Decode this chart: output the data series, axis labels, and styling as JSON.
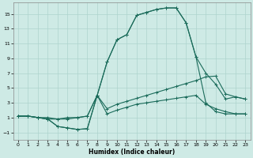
{
  "xlabel": "Humidex (Indice chaleur)",
  "background_color": "#ceeae5",
  "grid_color": "#add4ce",
  "line_color": "#1a6b5a",
  "xlim": [
    -0.5,
    23.5
  ],
  "ylim": [
    -2,
    16.5
  ],
  "xticks": [
    0,
    1,
    2,
    3,
    4,
    5,
    6,
    7,
    8,
    9,
    10,
    11,
    12,
    13,
    14,
    15,
    16,
    17,
    18,
    19,
    20,
    21,
    22,
    23
  ],
  "yticks": [
    -1,
    1,
    3,
    5,
    7,
    9,
    11,
    13,
    15
  ],
  "line1_x": [
    0,
    1,
    2,
    3,
    4,
    5,
    6,
    7,
    8,
    9,
    10,
    11,
    12,
    13,
    14,
    15,
    16,
    17,
    18,
    19,
    20,
    21,
    22,
    23
  ],
  "line1_y": [
    1.2,
    1.2,
    1.0,
    1.0,
    0.8,
    1.0,
    1.0,
    1.2,
    4.0,
    8.5,
    11.5,
    12.2,
    14.8,
    15.2,
    15.6,
    15.8,
    15.8,
    13.8,
    9.2,
    7.0,
    5.5,
    3.5,
    3.8,
    3.5
  ],
  "line2_x": [
    0,
    1,
    2,
    3,
    4,
    5,
    6,
    7,
    8,
    9,
    10,
    11,
    12,
    13,
    14,
    15,
    16,
    17,
    18,
    19,
    20,
    21,
    22,
    23
  ],
  "line2_y": [
    1.2,
    1.2,
    1.0,
    0.8,
    0.8,
    0.8,
    1.0,
    1.2,
    4.0,
    8.5,
    11.5,
    12.2,
    14.8,
    15.2,
    15.6,
    15.8,
    15.8,
    13.8,
    9.2,
    3.0,
    1.8,
    1.5,
    1.5,
    1.5
  ],
  "line3_x": [
    0,
    1,
    2,
    3,
    4,
    5,
    6,
    7,
    8,
    9,
    10,
    11,
    12,
    13,
    14,
    15,
    16,
    17,
    18,
    19,
    20,
    21,
    22,
    23
  ],
  "line3_y": [
    1.2,
    1.2,
    1.0,
    0.8,
    -0.2,
    -0.4,
    -0.6,
    -0.5,
    4.0,
    2.2,
    2.8,
    3.2,
    3.6,
    4.0,
    4.4,
    4.8,
    5.2,
    5.6,
    6.0,
    6.5,
    6.6,
    4.2,
    3.8,
    3.5
  ],
  "line4_x": [
    0,
    1,
    2,
    3,
    4,
    5,
    6,
    7,
    8,
    9,
    10,
    11,
    12,
    13,
    14,
    15,
    16,
    17,
    18,
    19,
    20,
    21,
    22,
    23
  ],
  "line4_y": [
    1.2,
    1.2,
    1.0,
    0.8,
    -0.2,
    -0.4,
    -0.6,
    -0.5,
    4.0,
    1.5,
    2.0,
    2.4,
    2.8,
    3.0,
    3.2,
    3.4,
    3.6,
    3.8,
    4.0,
    2.8,
    2.2,
    1.8,
    1.5,
    1.5
  ]
}
